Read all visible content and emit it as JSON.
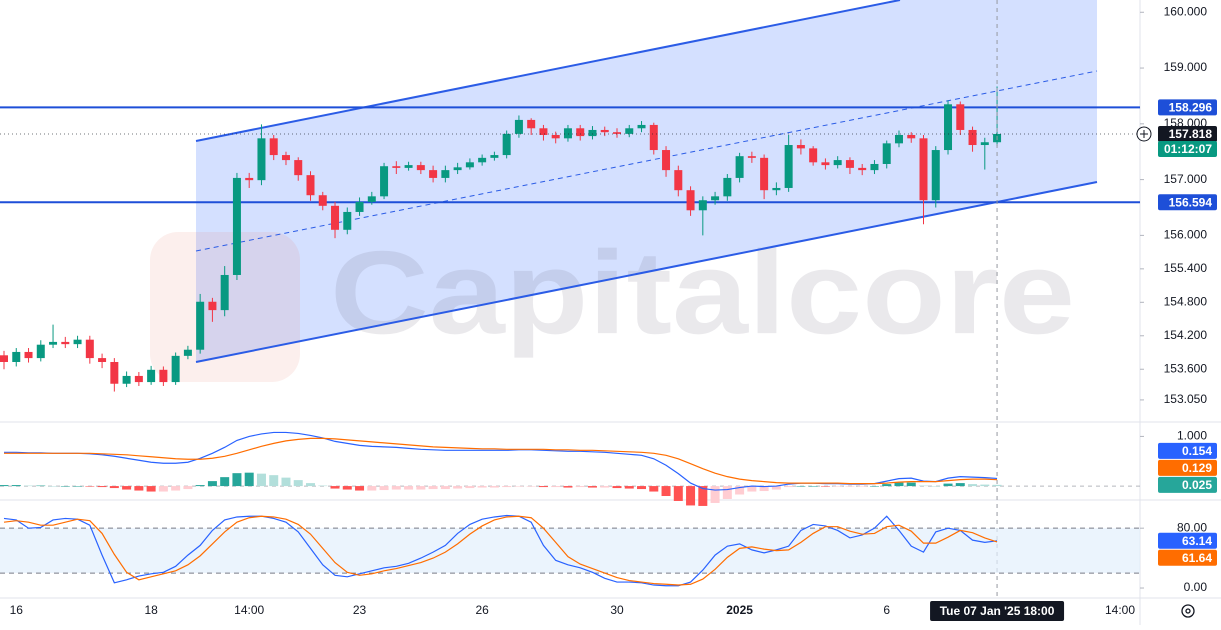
{
  "chart_data": [
    {
      "type": "candlestick",
      "watermark": "Capitalcore",
      "countdown": "01:12:07",
      "future_time_label": "14:00",
      "categories": [
        null,
        "16",
        null,
        null,
        null,
        null,
        null,
        null,
        null,
        null,
        null,
        null,
        "18",
        null,
        null,
        null,
        null,
        null,
        null,
        null,
        "14:00",
        null,
        null,
        null,
        null,
        null,
        null,
        null,
        null,
        "23",
        null,
        null,
        null,
        null,
        null,
        null,
        null,
        null,
        null,
        "26",
        null,
        null,
        null,
        null,
        null,
        null,
        null,
        null,
        null,
        null,
        "30",
        null,
        null,
        null,
        null,
        null,
        null,
        null,
        null,
        null,
        "2025",
        null,
        null,
        null,
        null,
        null,
        null,
        null,
        null,
        null,
        null,
        null,
        "6",
        null,
        null,
        null,
        null,
        null,
        null,
        null,
        null,
        "Tue 07 Jan '25  18:00"
      ],
      "open": [
        153.85,
        153.73,
        153.91,
        153.8,
        154.04,
        154.09,
        154.05,
        154.13,
        153.8,
        153.73,
        153.34,
        153.48,
        153.37,
        153.59,
        153.37,
        153.84,
        153.95,
        154.81,
        154.66,
        155.29,
        157.03,
        156.99,
        157.74,
        157.44,
        157.35,
        157.08,
        156.72,
        156.53,
        156.1,
        156.42,
        156.6,
        156.7,
        157.24,
        157.21,
        157.26,
        157.17,
        157.03,
        157.17,
        157.22,
        157.31,
        157.39,
        157.44,
        157.82,
        158.07,
        157.92,
        157.8,
        157.74,
        157.92,
        157.78,
        157.89,
        157.85,
        157.82,
        157.92,
        157.98,
        157.53,
        157.17,
        156.81,
        156.45,
        156.63,
        156.7,
        157.03,
        157.42,
        157.39,
        156.81,
        156.85,
        157.62,
        157.56,
        157.31,
        157.26,
        157.35,
        157.21,
        157.17,
        157.28,
        157.65,
        157.8,
        157.74,
        156.63,
        157.53,
        158.35,
        157.89,
        157.62,
        157.67
      ],
      "high": [
        153.93,
        153.98,
        153.98,
        154.12,
        154.4,
        154.18,
        154.2,
        154.2,
        153.88,
        153.8,
        153.56,
        153.55,
        153.66,
        153.65,
        153.9,
        154.02,
        154.95,
        154.88,
        155.45,
        157.12,
        157.12,
        157.99,
        157.8,
        157.5,
        157.4,
        157.15,
        156.78,
        156.6,
        156.5,
        156.68,
        156.78,
        157.3,
        157.33,
        157.32,
        157.32,
        157.25,
        157.25,
        157.3,
        157.38,
        157.45,
        157.5,
        157.88,
        158.15,
        158.1,
        157.98,
        157.86,
        157.98,
        157.98,
        157.96,
        157.95,
        157.92,
        157.98,
        158.05,
        158.02,
        157.6,
        157.25,
        156.88,
        156.7,
        156.78,
        157.1,
        157.48,
        157.5,
        157.45,
        156.95,
        157.8,
        157.72,
        157.6,
        157.38,
        157.42,
        157.4,
        157.28,
        157.35,
        157.7,
        157.88,
        157.85,
        157.8,
        157.6,
        158.42,
        158.4,
        157.95,
        157.75,
        158.67
      ],
      "low": [
        153.6,
        153.65,
        153.72,
        153.74,
        153.98,
        153.98,
        153.98,
        153.7,
        153.62,
        153.2,
        153.28,
        153.3,
        153.32,
        153.3,
        153.32,
        153.78,
        153.88,
        154.45,
        154.55,
        155.2,
        156.85,
        156.9,
        157.35,
        157.26,
        156.98,
        156.62,
        156.45,
        155.95,
        156.02,
        156.35,
        156.55,
        156.65,
        157.1,
        157.16,
        157.1,
        156.95,
        156.95,
        157.1,
        157.18,
        157.25,
        157.34,
        157.38,
        157.75,
        157.8,
        157.7,
        157.65,
        157.68,
        157.7,
        157.72,
        157.78,
        157.75,
        157.76,
        157.85,
        157.45,
        157.05,
        156.7,
        156.35,
        156.0,
        156.55,
        156.62,
        156.95,
        157.3,
        156.65,
        156.72,
        156.78,
        157.45,
        157.25,
        157.18,
        157.2,
        157.1,
        157.08,
        157.1,
        157.2,
        157.58,
        157.66,
        156.2,
        156.5,
        157.45,
        157.8,
        157.5,
        157.18,
        157.6
      ],
      "close": [
        153.73,
        153.91,
        153.8,
        154.04,
        154.09,
        154.05,
        154.13,
        153.8,
        153.73,
        153.34,
        153.48,
        153.37,
        153.59,
        153.37,
        153.84,
        153.95,
        154.81,
        154.66,
        155.29,
        157.03,
        156.99,
        157.74,
        157.44,
        157.35,
        157.08,
        156.72,
        156.53,
        156.1,
        156.42,
        156.6,
        156.7,
        157.24,
        157.21,
        157.26,
        157.17,
        157.03,
        157.17,
        157.22,
        157.31,
        157.39,
        157.44,
        157.82,
        158.07,
        157.92,
        157.8,
        157.74,
        157.92,
        157.78,
        157.89,
        157.85,
        157.82,
        157.92,
        157.98,
        157.53,
        157.17,
        156.81,
        156.45,
        156.63,
        156.7,
        157.03,
        157.42,
        157.39,
        156.81,
        156.85,
        157.62,
        157.56,
        157.31,
        157.26,
        157.35,
        157.21,
        157.17,
        157.28,
        157.65,
        157.8,
        157.74,
        156.63,
        157.53,
        158.35,
        157.89,
        157.62,
        157.67,
        157.818
      ],
      "up_color": "#089981",
      "down_color": "#f23645",
      "hlines": [
        158.296,
        156.594
      ],
      "hline_color": "#1e4fd8",
      "ylim": [
        152.69,
        160.22
      ],
      "yticks": [
        {
          "value": 160,
          "label": "160.000"
        },
        {
          "value": 159,
          "label": "159.000"
        },
        {
          "value": 158,
          "label": "158.000"
        },
        {
          "value": 157,
          "label": "157.000"
        },
        {
          "value": 156,
          "label": "156.000"
        },
        {
          "value": 155.4,
          "label": "155.400"
        },
        {
          "value": 154.8,
          "label": "154.800"
        },
        {
          "value": 154.2,
          "label": "154.200"
        },
        {
          "value": 153.6,
          "label": "153.600"
        },
        {
          "value": 153.05,
          "label": "153.050"
        }
      ]
    },
    {
      "type": "macd",
      "ylim": [
        -0.22,
        1.23
      ],
      "yticks": [
        {
          "value": 1,
          "label": "1.000"
        }
      ],
      "series": [
        {
          "color": "#2962ff",
          "values": [
            0.68,
            0.68,
            0.67,
            0.67,
            0.66,
            0.66,
            0.66,
            0.65,
            0.63,
            0.6,
            0.56,
            0.52,
            0.48,
            0.46,
            0.46,
            0.48,
            0.56,
            0.66,
            0.78,
            0.92,
            1.0,
            1.05,
            1.08,
            1.08,
            1.06,
            1.02,
            0.97,
            0.9,
            0.86,
            0.82,
            0.8,
            0.79,
            0.78,
            0.76,
            0.74,
            0.73,
            0.72,
            0.72,
            0.72,
            0.72,
            0.72,
            0.72,
            0.73,
            0.73,
            0.72,
            0.71,
            0.7,
            0.7,
            0.69,
            0.68,
            0.66,
            0.64,
            0.62,
            0.55,
            0.42,
            0.25,
            0.06,
            -0.05,
            -0.08,
            -0.07,
            -0.03,
            0.0,
            -0.01,
            0.0,
            0.04,
            0.06,
            0.06,
            0.05,
            0.05,
            0.04,
            0.04,
            0.05,
            0.1,
            0.15,
            0.16,
            0.1,
            0.09,
            0.16,
            0.19,
            0.18,
            0.17,
            0.154
          ]
        },
        {
          "color": "#ff6d00",
          "values": [
            0.66,
            0.66,
            0.66,
            0.66,
            0.66,
            0.66,
            0.66,
            0.66,
            0.65,
            0.64,
            0.63,
            0.61,
            0.59,
            0.57,
            0.55,
            0.54,
            0.54,
            0.56,
            0.6,
            0.66,
            0.73,
            0.8,
            0.86,
            0.91,
            0.94,
            0.96,
            0.96,
            0.95,
            0.93,
            0.91,
            0.89,
            0.87,
            0.85,
            0.83,
            0.81,
            0.79,
            0.78,
            0.77,
            0.76,
            0.75,
            0.75,
            0.74,
            0.74,
            0.74,
            0.74,
            0.73,
            0.73,
            0.72,
            0.72,
            0.71,
            0.7,
            0.69,
            0.68,
            0.66,
            0.62,
            0.55,
            0.45,
            0.35,
            0.26,
            0.19,
            0.14,
            0.11,
            0.09,
            0.07,
            0.06,
            0.06,
            0.06,
            0.06,
            0.06,
            0.05,
            0.05,
            0.05,
            0.06,
            0.08,
            0.09,
            0.09,
            0.09,
            0.11,
            0.13,
            0.14,
            0.14,
            0.129
          ]
        }
      ],
      "histogram": [
        0.02,
        0.02,
        0.01,
        0.01,
        0.0,
        0.0,
        0.0,
        -0.01,
        -0.02,
        -0.04,
        -0.07,
        -0.09,
        -0.11,
        -0.11,
        -0.09,
        -0.06,
        0.02,
        0.1,
        0.18,
        0.26,
        0.27,
        0.25,
        0.22,
        0.17,
        0.12,
        0.06,
        0.01,
        -0.05,
        -0.07,
        -0.09,
        -0.09,
        -0.08,
        -0.07,
        -0.07,
        -0.07,
        -0.06,
        -0.06,
        -0.05,
        -0.04,
        -0.03,
        -0.03,
        -0.02,
        -0.01,
        -0.01,
        -0.02,
        -0.02,
        -0.03,
        -0.02,
        -0.03,
        -0.03,
        -0.04,
        -0.05,
        -0.06,
        -0.11,
        -0.2,
        -0.3,
        -0.39,
        -0.4,
        -0.34,
        -0.26,
        -0.17,
        -0.11,
        -0.1,
        -0.07,
        -0.02,
        0.0,
        0.0,
        -0.01,
        -0.01,
        -0.01,
        -0.01,
        0.0,
        0.04,
        0.07,
        0.07,
        0.01,
        0.0,
        0.05,
        0.06,
        0.04,
        0.03,
        0.025
      ],
      "histogram_colors": [
        "#26a69a",
        "#b2dfdb",
        "#ffcdd2",
        "#ff5252"
      ]
    },
    {
      "type": "stochastic",
      "ylim": [
        -12,
        111
      ],
      "yticks": [
        {
          "value": 80,
          "label": "80.00"
        },
        {
          "value": 0,
          "label": "0.00"
        }
      ],
      "band": [
        20,
        80
      ],
      "band_color": "#e3f0fc",
      "series": [
        {
          "color": "#2962ff",
          "values": [
            93,
            91,
            80,
            81,
            91,
            93,
            92,
            84,
            44,
            7,
            11,
            16,
            19,
            21,
            29,
            44,
            57,
            77,
            91,
            95,
            96,
            96,
            93,
            88,
            75,
            53,
            31,
            17,
            15,
            19,
            23,
            27,
            29,
            33,
            40,
            48,
            57,
            73,
            85,
            92,
            95,
            97,
            96,
            88,
            57,
            37,
            31,
            27,
            21,
            13,
            8,
            8,
            7,
            4,
            3,
            3,
            8,
            24,
            44,
            56,
            59,
            51,
            47,
            51,
            56,
            77,
            85,
            83,
            77,
            67,
            71,
            80,
            96,
            77,
            56,
            48,
            75,
            80,
            77,
            64,
            61,
            63.14
          ]
        },
        {
          "color": "#ff6d00",
          "values": [
            88,
            90,
            88,
            84,
            84,
            88,
            92,
            90,
            73,
            45,
            21,
            11,
            15,
            19,
            23,
            31,
            43,
            59,
            75,
            88,
            94,
            96,
            95,
            92,
            85,
            72,
            53,
            34,
            21,
            17,
            19,
            23,
            26,
            30,
            34,
            40,
            48,
            59,
            72,
            83,
            91,
            95,
            96,
            94,
            80,
            61,
            42,
            32,
            26,
            20,
            14,
            10,
            8,
            6,
            5,
            4,
            5,
            12,
            25,
            41,
            53,
            55,
            52,
            50,
            51,
            61,
            73,
            82,
            82,
            76,
            72,
            73,
            82,
            84,
            76,
            60,
            60,
            68,
            77,
            74,
            67,
            61.64
          ]
        }
      ]
    }
  ]
}
